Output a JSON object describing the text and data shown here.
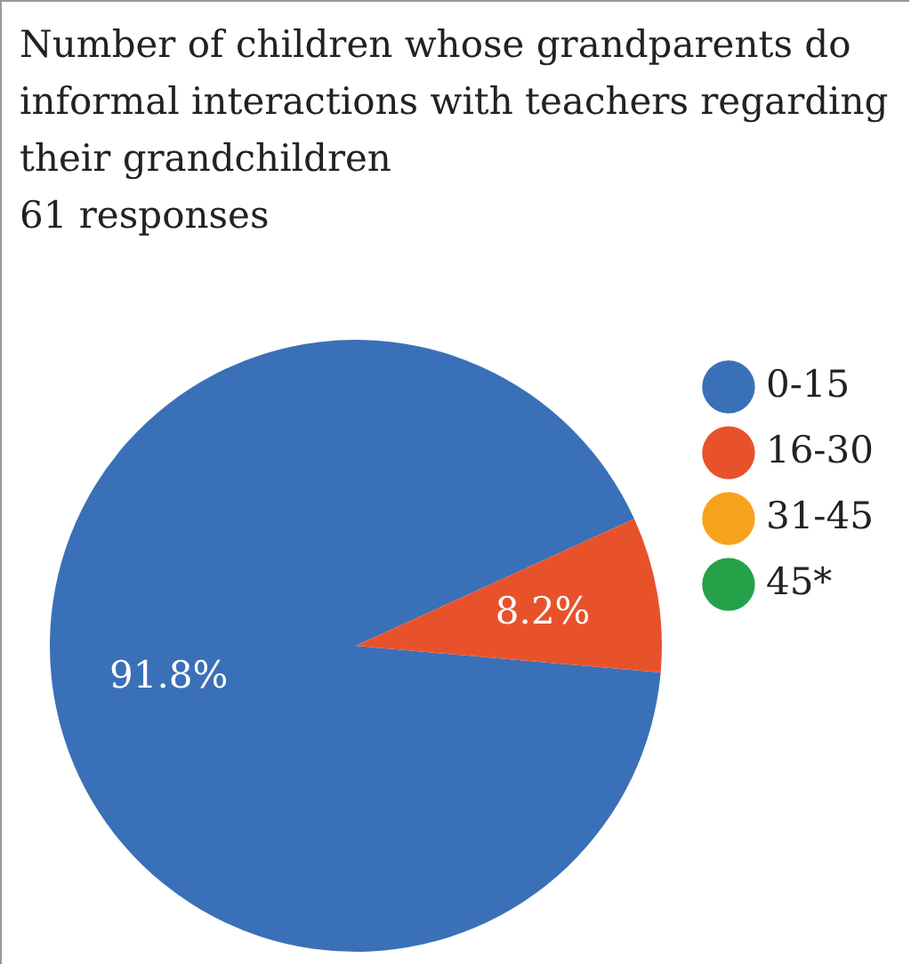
{
  "chart_data": {
    "type": "pie",
    "title": "Number of children whose grandparents do informal interactions with teachers regarding their grandchildren",
    "subtitle": "61 responses",
    "categories": [
      "0-15",
      "16-30",
      "31-45",
      "45*"
    ],
    "values": [
      91.8,
      8.2,
      0,
      0
    ],
    "colors": [
      "#3a70b7",
      "#e8522b",
      "#f7a21b",
      "#25a149"
    ],
    "value_labels": [
      "91.8%",
      "8.2%",
      null,
      null
    ],
    "legend": "right"
  }
}
